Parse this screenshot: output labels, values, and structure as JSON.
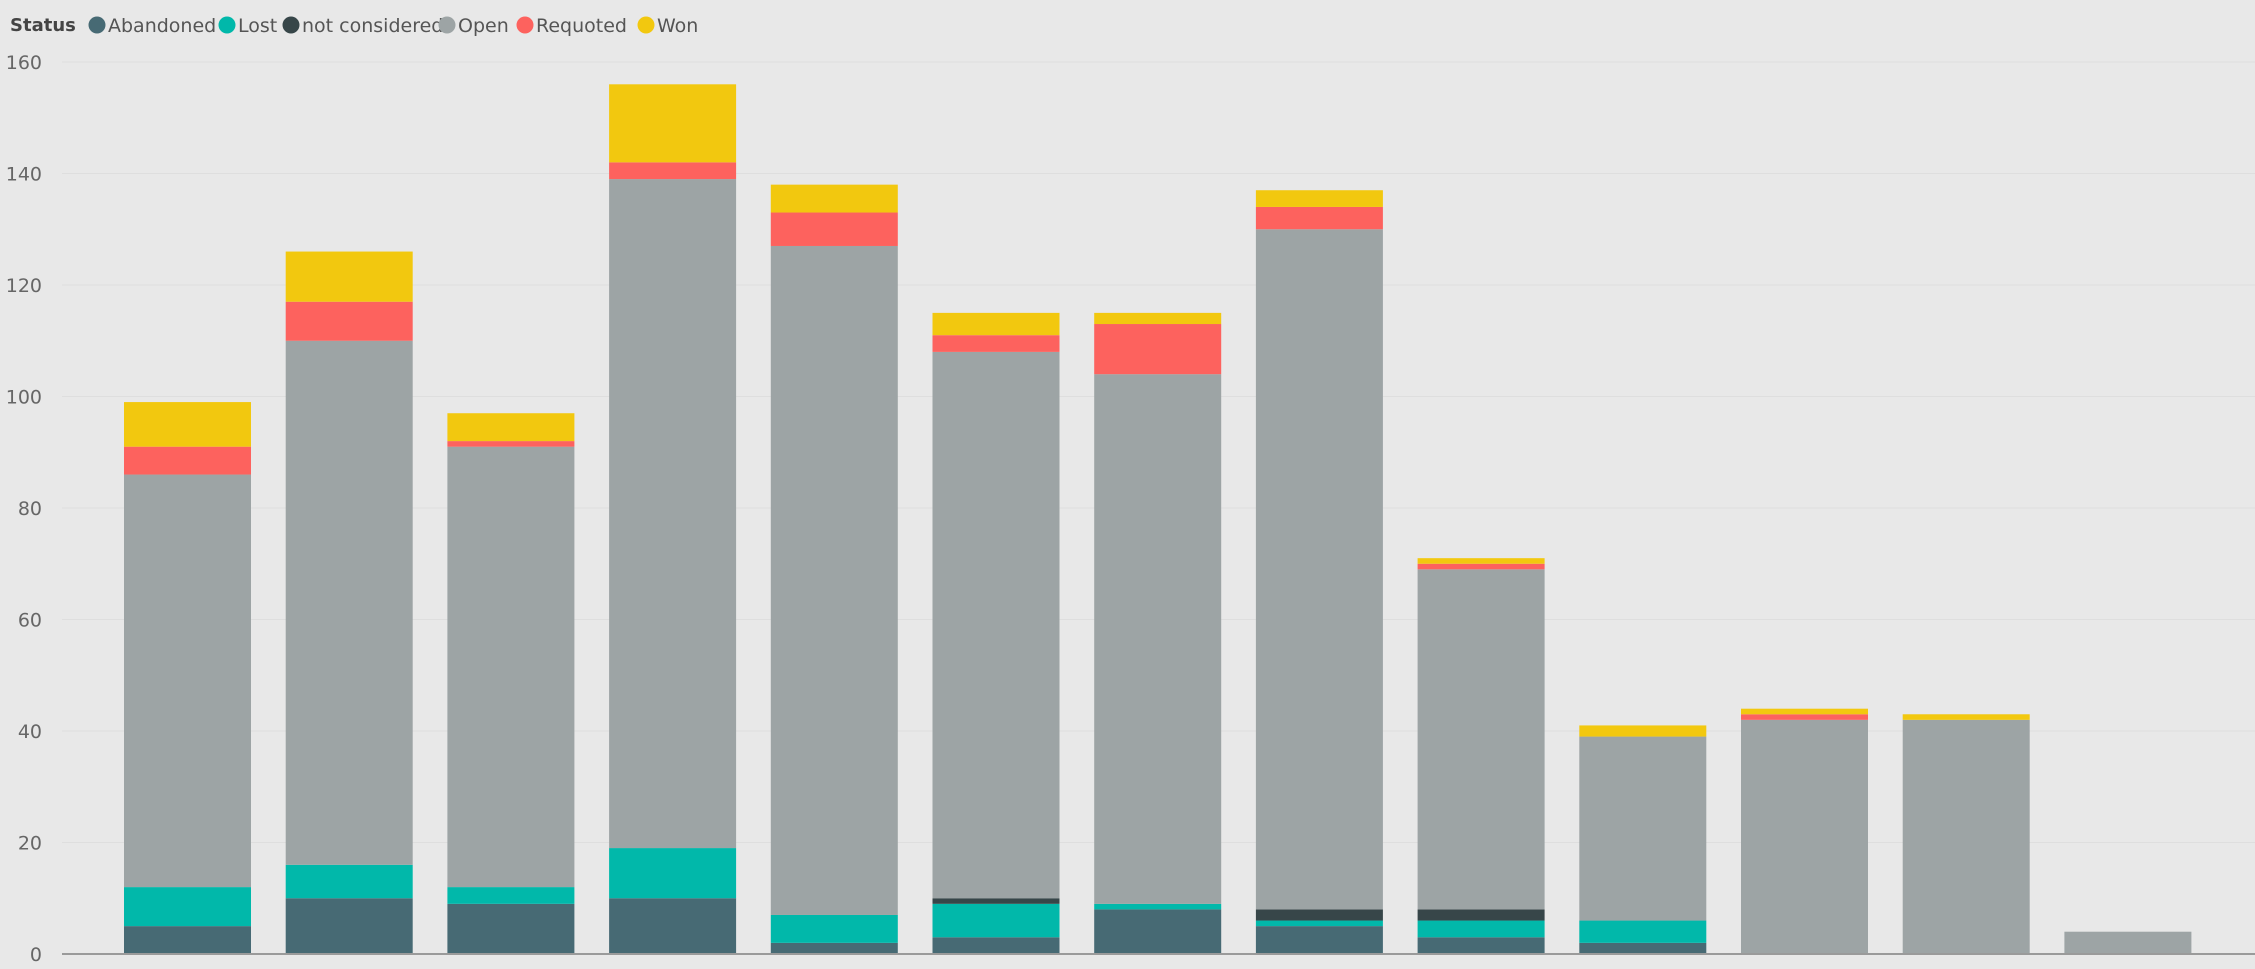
{
  "legend": {
    "title": "Status",
    "items": [
      {
        "label": "Abandoned",
        "color": "#476A74"
      },
      {
        "label": "Lost",
        "color": "#01B8AA"
      },
      {
        "label": "not considered",
        "color": "#374649"
      },
      {
        "label": "Open",
        "color": "#9DA4A5"
      },
      {
        "label": "Requoted",
        "color": "#FD625E"
      },
      {
        "label": "Won",
        "color": "#F2C80F"
      }
    ]
  },
  "chart_data": {
    "type": "bar",
    "stacked": true,
    "title": "",
    "xlabel": "",
    "ylabel": "",
    "ylim": [
      0,
      160
    ],
    "yticks": [
      0,
      20,
      40,
      60,
      80,
      100,
      120,
      140,
      160
    ],
    "grid": true,
    "legend_position": "top-left",
    "categories": [
      "",
      "",
      "",
      "",
      "",
      "",
      "",
      "",
      "",
      "",
      "",
      "",
      ""
    ],
    "series": [
      {
        "name": "Abandoned",
        "color": "#476A74",
        "values": [
          5,
          10,
          9,
          10,
          2,
          3,
          8,
          5,
          3,
          2,
          0,
          0,
          0
        ]
      },
      {
        "name": "Lost",
        "color": "#01B8AA",
        "values": [
          7,
          6,
          3,
          9,
          5,
          6,
          1,
          1,
          3,
          4,
          0,
          0,
          0
        ]
      },
      {
        "name": "not considered",
        "color": "#374649",
        "values": [
          0,
          0,
          0,
          0,
          0,
          1,
          0,
          2,
          2,
          0,
          0,
          0,
          0
        ]
      },
      {
        "name": "Open",
        "color": "#9DA4A5",
        "values": [
          74,
          94,
          79,
          120,
          120,
          98,
          95,
          122,
          61,
          33,
          42,
          42,
          4
        ]
      },
      {
        "name": "Requoted",
        "color": "#FD625E",
        "values": [
          5,
          7,
          1,
          3,
          6,
          3,
          9,
          4,
          1,
          0,
          1,
          0,
          0
        ]
      },
      {
        "name": "Won",
        "color": "#F2C80F",
        "values": [
          8,
          9,
          5,
          14,
          5,
          4,
          2,
          3,
          1,
          2,
          1,
          1,
          0
        ]
      }
    ]
  }
}
